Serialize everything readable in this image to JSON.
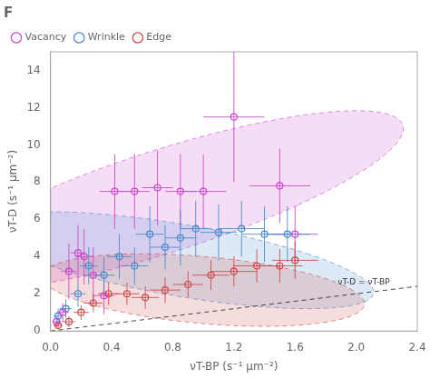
{
  "chart_data": {
    "type": "scatter",
    "title": "F",
    "xlabel": "νT-BP (s⁻¹ μm⁻²)",
    "ylabel": "νT-D (s⁻¹ μm⁻²)",
    "xlim": [
      0,
      2.4
    ],
    "ylim": [
      0,
      15
    ],
    "xticks": [
      {
        "value": 0,
        "label": "0.0"
      },
      0.4,
      0.8,
      1.2,
      1.6,
      {
        "value": 2.0,
        "label": "2.0"
      },
      2.4
    ],
    "yticks": [
      0,
      2,
      4,
      6,
      8,
      10,
      12,
      14
    ],
    "grid": false,
    "legend": "upper left",
    "marker": "open_circle",
    "reference_line": {
      "x": [
        0,
        2.4
      ],
      "y": [
        0,
        2.4
      ],
      "line_style": "dashed"
    },
    "annotations": [
      {
        "text": "νT-D = νT-BP",
        "x": 2.05,
        "y": 2.3
      }
    ],
    "series": [
      {
        "name": "Vacancy",
        "color": "#cc44cc",
        "x": [
          0.04,
          0.08,
          0.12,
          0.18,
          0.22,
          0.28,
          0.35,
          0.42,
          0.55,
          0.7,
          0.85,
          1.0,
          1.2,
          1.5,
          1.6
        ],
        "values": [
          0.5,
          1.0,
          3.2,
          4.2,
          4.0,
          3.0,
          1.9,
          7.5,
          7.5,
          7.7,
          7.5,
          7.5,
          11.5,
          7.8,
          5.2
        ],
        "xerr": [
          0.03,
          0.04,
          0.05,
          0.05,
          0.06,
          0.06,
          0.07,
          0.1,
          0.1,
          0.1,
          0.1,
          0.15,
          0.2,
          0.2,
          0.15
        ],
        "yerr": [
          0.3,
          0.5,
          1.5,
          1.5,
          1.5,
          1.5,
          1.0,
          2.0,
          2.0,
          2.0,
          2.0,
          2.0,
          3.5,
          2.0,
          1.5
        ],
        "ellipse": {
          "center": [
            0.75,
            7.0
          ],
          "width": 1.8,
          "height": 10.0,
          "angle": -15
        }
      },
      {
        "name": "Wrinkle",
        "color": "#4488cc",
        "x": [
          0.05,
          0.1,
          0.18,
          0.25,
          0.35,
          0.45,
          0.55,
          0.65,
          0.75,
          0.85,
          0.95,
          1.1,
          1.25,
          1.4,
          1.55
        ],
        "values": [
          0.8,
          1.2,
          2.0,
          3.5,
          3.0,
          4.0,
          3.5,
          5.2,
          4.5,
          5.0,
          5.5,
          5.3,
          5.5,
          5.2,
          5.2
        ],
        "xerr": [
          0.03,
          0.04,
          0.05,
          0.06,
          0.07,
          0.08,
          0.09,
          0.09,
          0.1,
          0.1,
          0.1,
          0.12,
          0.15,
          0.15,
          0.15
        ],
        "yerr": [
          0.4,
          0.5,
          0.7,
          1.0,
          1.0,
          1.2,
          1.0,
          1.5,
          1.2,
          1.5,
          1.5,
          1.5,
          1.5,
          1.5,
          1.5
        ],
        "ellipse": {
          "center": [
            0.85,
            3.8
          ],
          "width": 1.8,
          "height": 5.5,
          "angle": 20
        }
      },
      {
        "name": "Edge",
        "color": "#cc4444",
        "x": [
          0.05,
          0.12,
          0.2,
          0.28,
          0.38,
          0.5,
          0.62,
          0.75,
          0.9,
          1.05,
          1.2,
          1.35,
          1.5,
          1.6
        ],
        "values": [
          0.3,
          0.5,
          1.0,
          1.5,
          2.0,
          2.0,
          1.8,
          2.2,
          2.5,
          3.0,
          3.2,
          3.5,
          3.5,
          3.8
        ],
        "xerr": [
          0.03,
          0.04,
          0.05,
          0.06,
          0.07,
          0.08,
          0.09,
          0.1,
          0.1,
          0.12,
          0.15,
          0.15,
          0.15,
          0.15
        ],
        "yerr": [
          0.2,
          0.3,
          0.4,
          0.5,
          0.6,
          0.6,
          0.6,
          0.7,
          0.7,
          0.8,
          0.8,
          0.9,
          0.9,
          1.0
        ],
        "ellipse": {
          "center": [
            1.0,
            2.2
          ],
          "width": 1.9,
          "height": 4.0,
          "angle": 15
        }
      }
    ]
  }
}
